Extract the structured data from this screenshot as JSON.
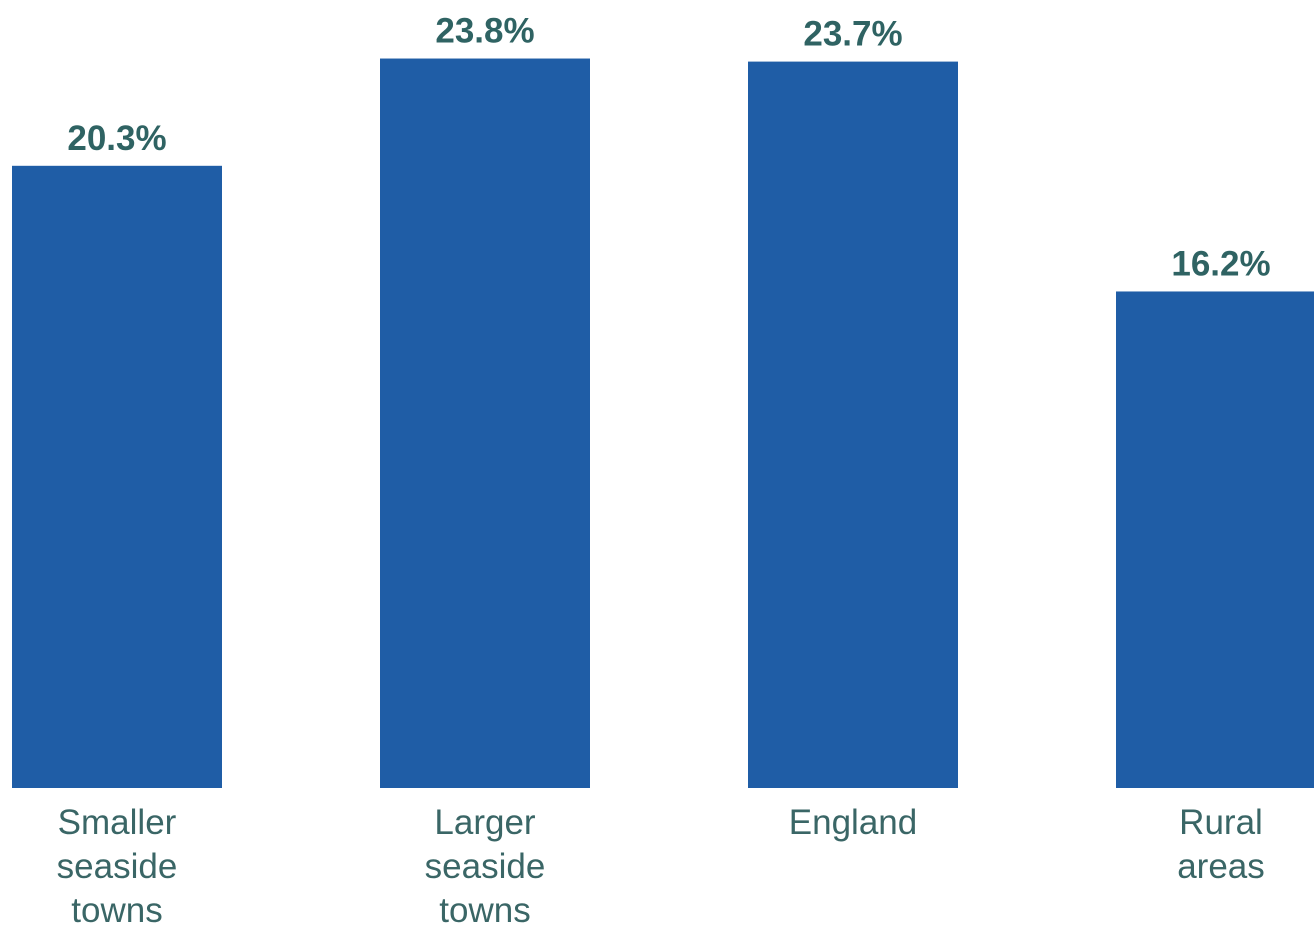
{
  "chart_data": {
    "type": "bar",
    "categories": [
      [
        "Smaller",
        "seaside",
        "towns"
      ],
      [
        "Larger",
        "seaside",
        "towns"
      ],
      [
        "England"
      ],
      [
        "Rural",
        "areas"
      ]
    ],
    "values": [
      20.3,
      23.8,
      23.7,
      16.2
    ],
    "value_labels": [
      "20.3%",
      "23.8%",
      "23.7%",
      "16.2%"
    ],
    "title": "",
    "xlabel": "",
    "ylabel": "",
    "ylim": [
      0,
      25
    ],
    "grid": false,
    "legend": "none",
    "colors": {
      "bar": "#1F5DA6",
      "value_label": "#2F6363",
      "category_label": "#3A6666"
    }
  }
}
